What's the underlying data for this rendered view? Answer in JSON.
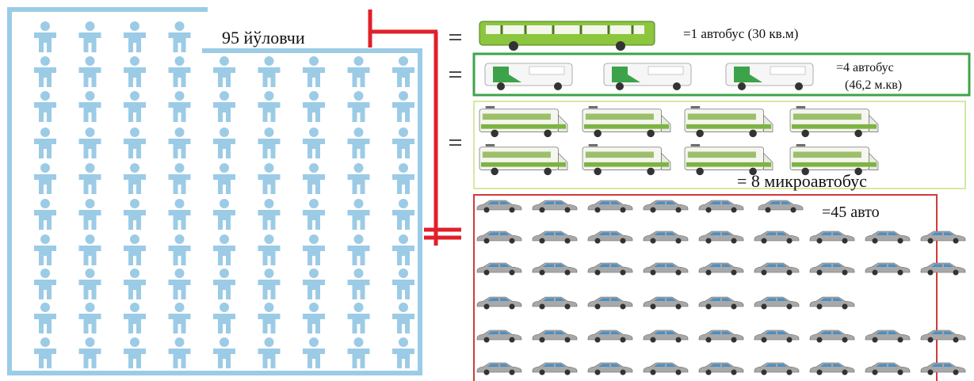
{
  "passengers": {
    "label": "95 йўловчи"
  },
  "equivalents": [
    {
      "label": "=1 автобус (30 кв.м)"
    },
    {
      "label_lines": [
        "=4 автобус",
        "(46,2 м.кв)"
      ]
    },
    {
      "label": "= 8 микроавтобус"
    },
    {
      "label": "=45 авто"
    }
  ]
}
